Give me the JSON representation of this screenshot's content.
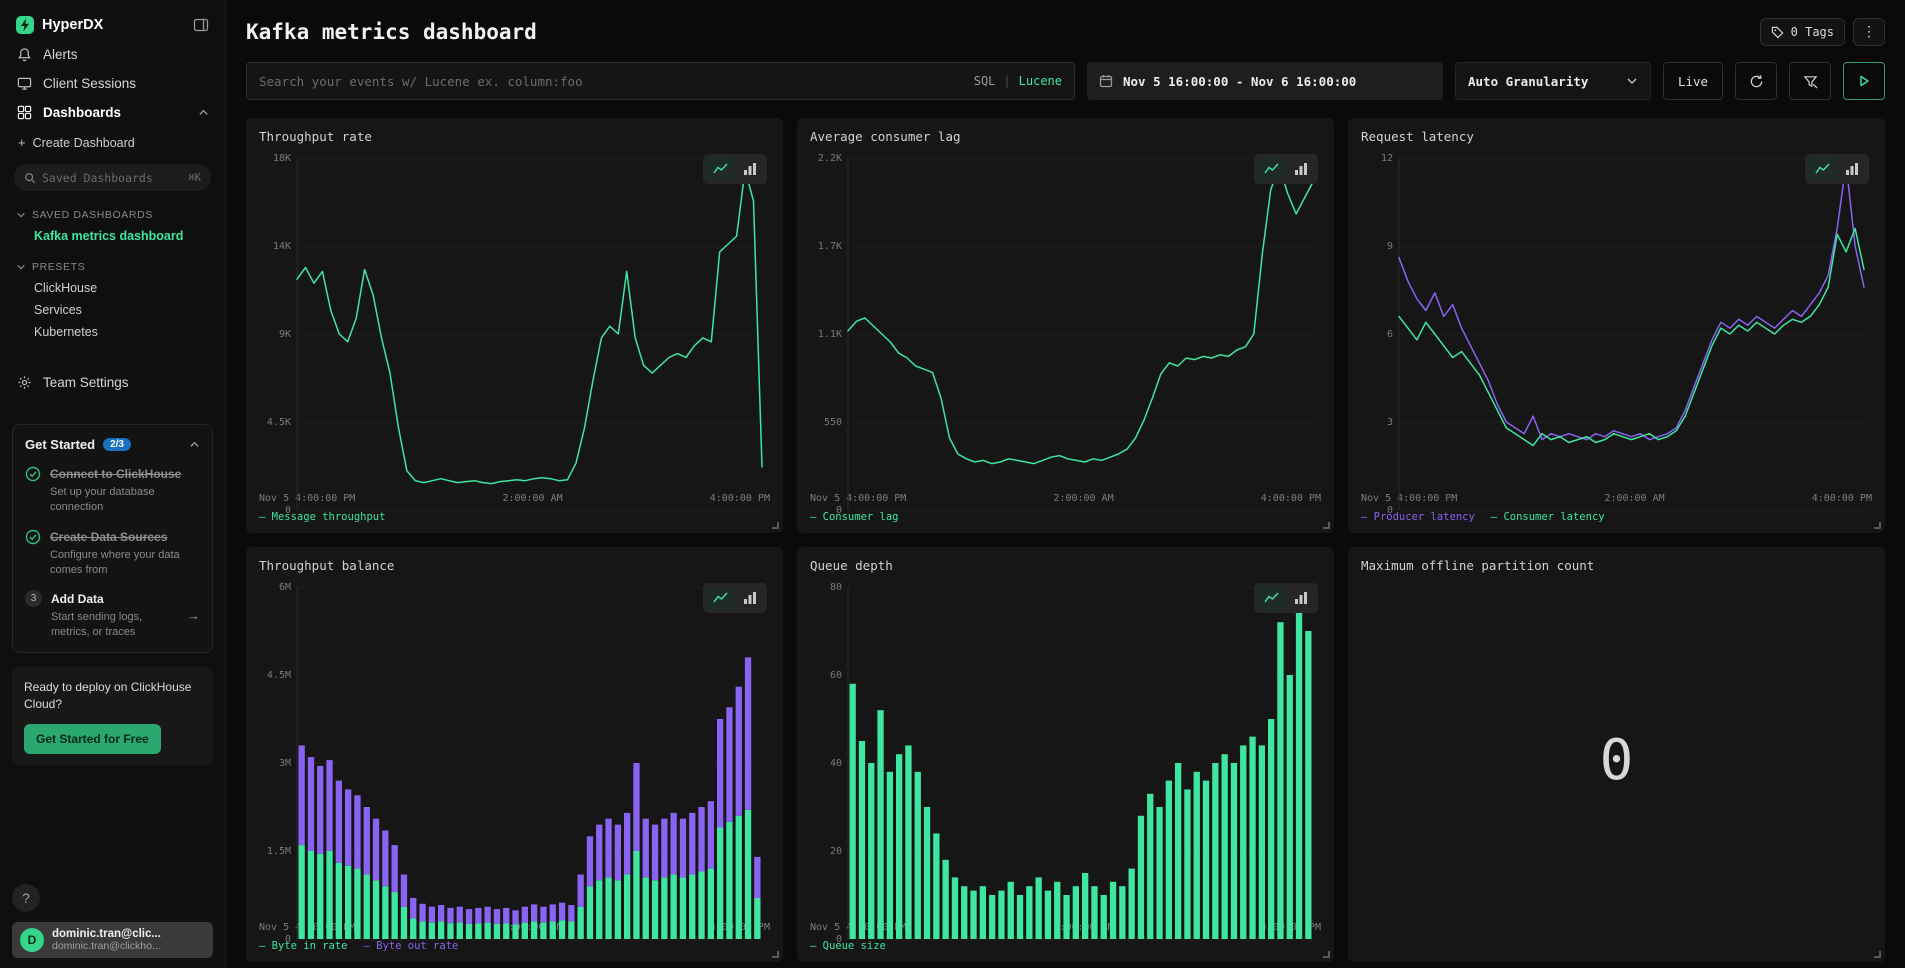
{
  "colors": {
    "green": "#3ee6a0",
    "purple": "#8a63f2",
    "badge_blue": "#1971c2",
    "button_green": "#2aa86f"
  },
  "icons": {
    "kebab": "⋮",
    "arrow_right": "→",
    "plus": "+"
  },
  "sidebar": {
    "brand": "HyperDX",
    "nav": [
      {
        "label": "Alerts"
      },
      {
        "label": "Client Sessions"
      },
      {
        "label": "Dashboards"
      }
    ],
    "create_dashboard_label": "Create Dashboard",
    "search": {
      "placeholder": "Saved Dashboards",
      "shortcut": "⌘K"
    },
    "saved_section_label": "SAVED DASHBOARDS",
    "saved_dashboards": [
      {
        "label": "Kafka metrics dashboard"
      }
    ],
    "presets_section_label": "PRESETS",
    "presets": [
      {
        "label": "ClickHouse"
      },
      {
        "label": "Services"
      },
      {
        "label": "Kubernetes"
      }
    ],
    "team_settings_label": "Team Settings",
    "get_started": {
      "title": "Get Started",
      "badge": "2/3",
      "steps": [
        {
          "title": "Connect to ClickHouse",
          "desc": "Set up your database connection",
          "status": "done"
        },
        {
          "title": "Create Data Sources",
          "desc": "Configure where your data comes from",
          "status": "done"
        },
        {
          "title": "Add Data",
          "desc": "Start sending logs, metrics, or traces",
          "status": "todo",
          "number": "3"
        }
      ]
    },
    "deploy": {
      "text": "Ready to deploy on ClickHouse Cloud?",
      "cta": "Get Started for Free"
    },
    "help_label": "?",
    "user": {
      "avatar_initial": "D",
      "name": "dominic.tran@clic...",
      "email": "dominic.tran@clickho..."
    }
  },
  "header": {
    "title": "Kafka metrics dashboard",
    "tags_button": "0 Tags"
  },
  "toolbar": {
    "search_placeholder": "Search your events w/ Lucene ex. column:foo",
    "sql_label": "SQL",
    "divider": "|",
    "lucene_label": "Lucene",
    "date_range": "Nov 5 16:00:00 - Nov 6 16:00:00",
    "granularity_label": "Auto Granularity",
    "live_label": "Live"
  },
  "chart_data": [
    {
      "type": "line",
      "title": "Throughput rate",
      "ymax": 18000,
      "y_ticks": [
        "18K",
        "14K",
        "9K",
        "4.5K",
        "0"
      ],
      "x_labels": [
        "Nov 5 4:00:00 PM",
        "2:00:00 AM",
        "4:00:00 PM"
      ],
      "series": [
        {
          "name": "Message throughput",
          "color": "#3ee6a0",
          "values": [
            11800,
            12400,
            11600,
            12200,
            10200,
            9000,
            8600,
            9800,
            12300,
            11000,
            8800,
            7000,
            4200,
            2000,
            1500,
            1400,
            1500,
            1600,
            1500,
            1400,
            1450,
            1500,
            1400,
            1350,
            1450,
            1500,
            1550,
            1500,
            1600,
            1650,
            1600,
            1500,
            1550,
            2400,
            4200,
            6600,
            8800,
            9400,
            9000,
            12200,
            8800,
            7400,
            7000,
            7400,
            7800,
            8000,
            7800,
            8400,
            8800,
            8600,
            13200,
            13600,
            14000,
            17400,
            15800,
            2200
          ]
        }
      ]
    },
    {
      "type": "line",
      "title": "Average consumer lag",
      "ymax": 2200,
      "y_ticks": [
        "2.2K",
        "1.7K",
        "1.1K",
        "550",
        "0"
      ],
      "x_labels": [
        "Nov 5 4:00:00 PM",
        "2:00:00 AM",
        "4:00:00 PM"
      ],
      "series": [
        {
          "name": "Consumer lag",
          "color": "#3ee6a0",
          "values": [
            1120,
            1180,
            1200,
            1150,
            1100,
            1050,
            980,
            950,
            900,
            880,
            860,
            700,
            450,
            350,
            320,
            300,
            310,
            290,
            300,
            320,
            310,
            300,
            290,
            310,
            330,
            340,
            320,
            310,
            300,
            320,
            310,
            330,
            350,
            380,
            450,
            560,
            700,
            850,
            920,
            900,
            950,
            940,
            960,
            950,
            970,
            960,
            1000,
            1020,
            1100,
            1600,
            2000,
            2150,
            1980,
            1850,
            1950,
            2050
          ]
        }
      ]
    },
    {
      "type": "line",
      "title": "Request latency",
      "ymax": 12,
      "y_ticks": [
        "12",
        "9",
        "6",
        "3",
        "0"
      ],
      "x_labels": [
        "Nov 5 4:00:00 PM",
        "2:00:00 AM",
        "4:00:00 PM"
      ],
      "series": [
        {
          "name": "Producer latency",
          "color": "#8a63f2",
          "values": [
            8.6,
            7.8,
            7.2,
            6.8,
            7.4,
            6.6,
            7.0,
            6.2,
            5.6,
            5.0,
            4.4,
            3.6,
            3.0,
            2.8,
            2.6,
            3.2,
            2.4,
            2.6,
            2.5,
            2.6,
            2.5,
            2.4,
            2.6,
            2.5,
            2.7,
            2.6,
            2.5,
            2.6,
            2.4,
            2.5,
            2.6,
            2.8,
            3.4,
            4.2,
            5.0,
            5.8,
            6.4,
            6.2,
            6.5,
            6.3,
            6.6,
            6.4,
            6.2,
            6.5,
            6.8,
            6.6,
            7.0,
            7.4,
            8.0,
            9.6,
            11.8,
            9.0,
            7.6
          ]
        },
        {
          "name": "Consumer latency",
          "color": "#3ee6a0",
          "values": [
            6.6,
            6.2,
            5.8,
            6.4,
            6.0,
            5.6,
            5.2,
            5.4,
            5.0,
            4.6,
            4.0,
            3.4,
            2.8,
            2.6,
            2.4,
            2.2,
            2.6,
            2.4,
            2.5,
            2.3,
            2.4,
            2.5,
            2.3,
            2.4,
            2.6,
            2.5,
            2.4,
            2.5,
            2.6,
            2.4,
            2.5,
            2.7,
            3.2,
            4.0,
            4.8,
            5.6,
            6.2,
            6.0,
            6.3,
            6.1,
            6.4,
            6.2,
            6.0,
            6.3,
            6.5,
            6.4,
            6.6,
            7.0,
            7.6,
            9.4,
            8.8,
            9.6,
            8.2
          ]
        }
      ]
    },
    {
      "type": "bar",
      "title": "Throughput balance",
      "ymax": 6,
      "y_ticks": [
        "6M",
        "4.5M",
        "3M",
        "1.5M",
        "0"
      ],
      "x_labels": [
        "Nov 5 4:00:00 PM",
        "2:00:00 AM",
        "4:00:00 PM"
      ],
      "series": [
        {
          "name": "Byte in rate",
          "color": "#3ee6a0",
          "values": [
            1.6,
            1.5,
            1.45,
            1.5,
            1.3,
            1.25,
            1.2,
            1.1,
            1.0,
            0.9,
            0.8,
            0.55,
            0.35,
            0.3,
            0.28,
            0.3,
            0.27,
            0.28,
            0.26,
            0.27,
            0.28,
            0.26,
            0.27,
            0.25,
            0.28,
            0.3,
            0.28,
            0.3,
            0.32,
            0.3,
            0.55,
            0.9,
            1.0,
            1.05,
            1.0,
            1.1,
            1.5,
            1.05,
            1.0,
            1.05,
            1.1,
            1.05,
            1.1,
            1.15,
            1.2,
            1.9,
            2.0,
            2.1,
            2.2,
            0.7
          ]
        },
        {
          "name": "Byte out rate",
          "color": "#8a63f2",
          "values": [
            1.7,
            1.6,
            1.5,
            1.55,
            1.4,
            1.3,
            1.25,
            1.15,
            1.05,
            0.95,
            0.8,
            0.55,
            0.35,
            0.3,
            0.27,
            0.28,
            0.26,
            0.27,
            0.25,
            0.26,
            0.27,
            0.25,
            0.26,
            0.24,
            0.27,
            0.29,
            0.27,
            0.29,
            0.3,
            0.28,
            0.55,
            0.85,
            0.95,
            1.0,
            0.95,
            1.05,
            1.5,
            1.0,
            0.95,
            1.0,
            1.05,
            1.0,
            1.05,
            1.1,
            1.15,
            1.85,
            1.95,
            2.2,
            2.6,
            0.7
          ]
        }
      ]
    },
    {
      "type": "bar",
      "title": "Queue depth",
      "ymax": 80,
      "y_ticks": [
        "80",
        "60",
        "40",
        "20",
        "0"
      ],
      "x_labels": [
        "Nov 5 4:00:00 PM",
        "2:00:00 AM",
        "4:00:00 PM"
      ],
      "series": [
        {
          "name": "Queue size",
          "color": "#3ee6a0",
          "values": [
            58,
            45,
            40,
            52,
            38,
            42,
            44,
            38,
            30,
            24,
            18,
            14,
            12,
            11,
            12,
            10,
            11,
            13,
            10,
            12,
            14,
            11,
            13,
            10,
            12,
            15,
            12,
            10,
            13,
            12,
            16,
            28,
            33,
            30,
            36,
            40,
            34,
            38,
            36,
            40,
            42,
            40,
            44,
            46,
            44,
            50,
            72,
            60,
            75,
            70
          ]
        }
      ]
    },
    {
      "type": "number",
      "title": "Maximum offline partition count",
      "value": "0"
    }
  ]
}
